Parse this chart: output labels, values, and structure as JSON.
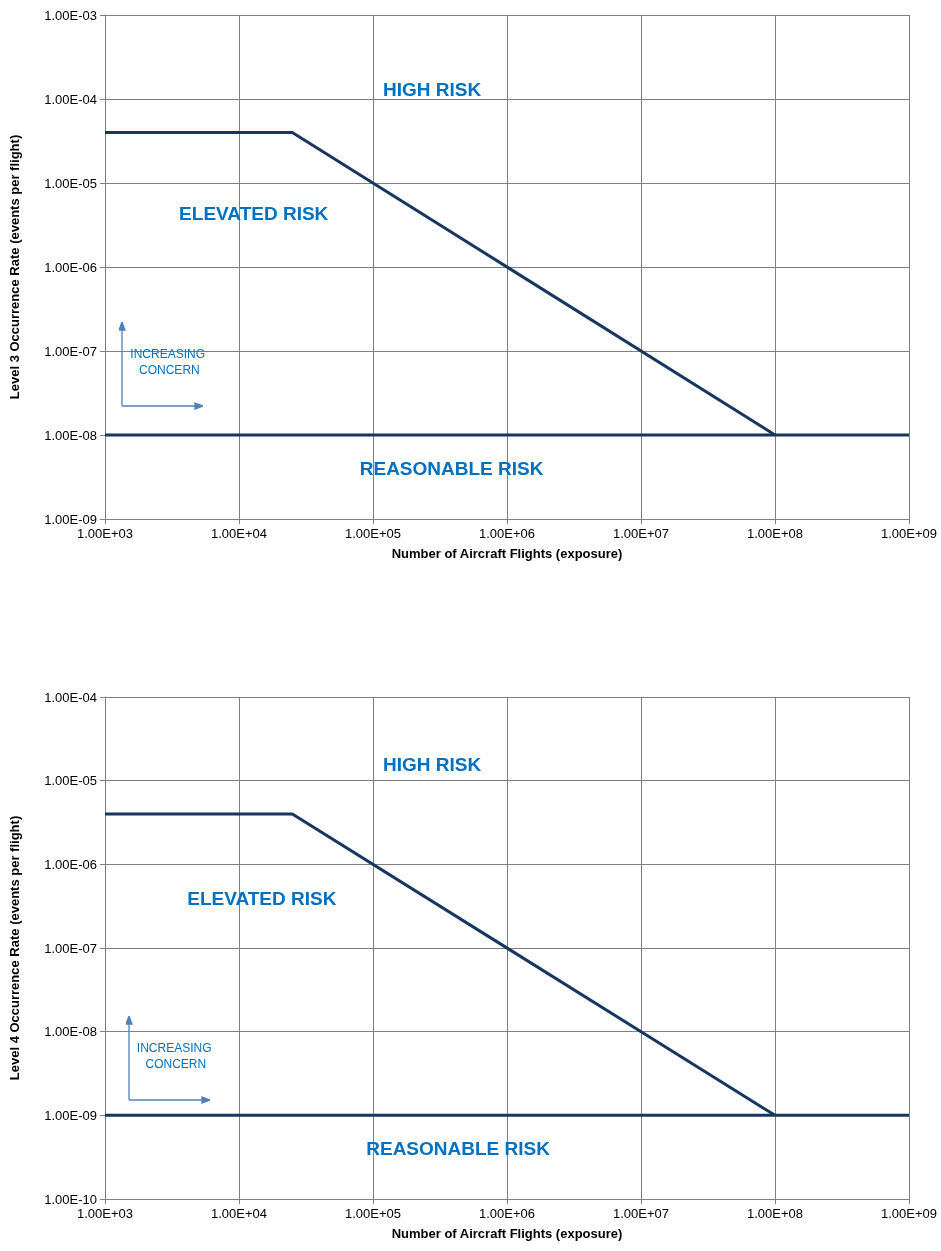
{
  "chart_data": [
    {
      "type": "line",
      "xlabel": "Number of Aircraft Flights (exposure)",
      "ylabel": "Level 3 Occurrence Rate (events per flight)",
      "log": "xy",
      "grid": true,
      "marker": "none",
      "line_style": "solid",
      "series": [
        {
          "color": "#17375e",
          "x": [
            1000,
            25000,
            100000000
          ],
          "values": [
            4e-05,
            4e-05,
            1e-08
          ]
        },
        {
          "color": "#17375e",
          "x": [
            1000,
            1000000000
          ],
          "values": [
            1e-08,
            1e-08
          ]
        }
      ],
      "xlim": [
        1000,
        1000000000
      ],
      "xticks": [
        {
          "value": 1000,
          "label": "1.00E+03"
        },
        {
          "value": 10000,
          "label": "1.00E+04"
        },
        {
          "value": 100000,
          "label": "1.00E+05"
        },
        {
          "value": 1000000,
          "label": "1.00E+06"
        },
        {
          "value": 10000000,
          "label": "1.00E+07"
        },
        {
          "value": 100000000,
          "label": "1.00E+08"
        },
        {
          "value": 1000000000,
          "label": "1.00E+09"
        }
      ],
      "ylim": [
        1e-09,
        0.001
      ],
      "yticks": [
        {
          "value": 1e-09,
          "label": "1.00E-09"
        },
        {
          "value": 1e-08,
          "label": "1.00E-08"
        },
        {
          "value": 1e-07,
          "label": "1.00E-07"
        },
        {
          "value": 1e-06,
          "label": "1.00E-06"
        },
        {
          "value": 1e-05,
          "label": "1.00E-05"
        },
        {
          "value": 0.0001,
          "label": "1.00E-04"
        },
        {
          "value": 0.001,
          "label": "1.00E-03"
        }
      ],
      "annotations": [
        "HIGH RISK",
        "ELEVATED RISK",
        "REASONABLE RISK",
        "INCREASING CONCERN"
      ]
    },
    {
      "type": "line",
      "xlabel": "Number of Aircraft Flights (exposure)",
      "ylabel": "Level 4 Occurrence Rate (events per flight)",
      "log": "xy",
      "grid": true,
      "marker": "none",
      "line_style": "solid",
      "series": [
        {
          "color": "#17375e",
          "x": [
            1000,
            25000,
            100000000
          ],
          "values": [
            4e-06,
            4e-06,
            1e-09
          ]
        },
        {
          "color": "#17375e",
          "x": [
            1000,
            1000000000
          ],
          "values": [
            1e-09,
            1e-09
          ]
        }
      ],
      "xlim": [
        1000,
        1000000000
      ],
      "xticks": [
        {
          "value": 1000,
          "label": "1.00E+03"
        },
        {
          "value": 10000,
          "label": "1.00E+04"
        },
        {
          "value": 100000,
          "label": "1.00E+05"
        },
        {
          "value": 1000000,
          "label": "1.00E+06"
        },
        {
          "value": 10000000,
          "label": "1.00E+07"
        },
        {
          "value": 100000000,
          "label": "1.00E+08"
        },
        {
          "value": 1000000000,
          "label": "1.00E+09"
        }
      ],
      "ylim": [
        1e-10,
        0.0001
      ],
      "yticks": [
        {
          "value": 1e-10,
          "label": "1.00E-10"
        },
        {
          "value": 1e-09,
          "label": "1.00E-09"
        },
        {
          "value": 1e-08,
          "label": "1.00E-08"
        },
        {
          "value": 1e-07,
          "label": "1.00E-07"
        },
        {
          "value": 1e-06,
          "label": "1.00E-06"
        },
        {
          "value": 1e-05,
          "label": "1.00E-05"
        },
        {
          "value": 0.0001,
          "label": "1.00E-04"
        }
      ],
      "annotations": [
        "HIGH RISK",
        "ELEVATED RISK",
        "REASONABLE RISK",
        "INCREASING CONCERN"
      ]
    }
  ]
}
